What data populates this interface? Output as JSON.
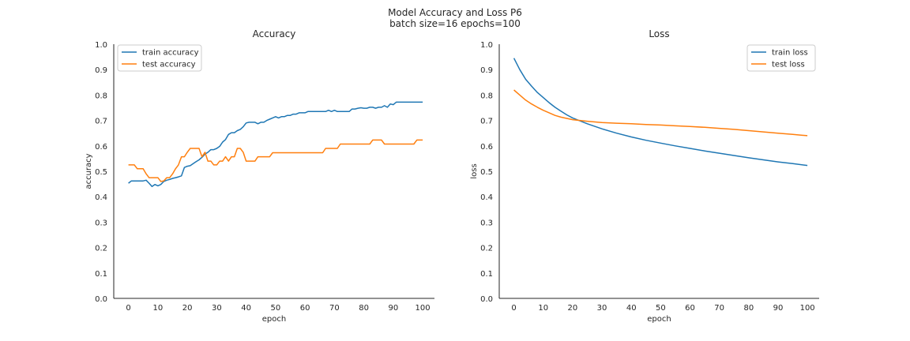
{
  "figure": {
    "title_line1": "Model Accuracy and Loss P6",
    "title_line2": "batch size=16 epochs=100"
  },
  "colors": {
    "series1": "#1f77b4",
    "series2": "#ff7f0e",
    "axis": "#262626"
  },
  "chart_data": [
    {
      "type": "line",
      "title": "Accuracy",
      "xlabel": "epoch",
      "ylabel": "accuracy",
      "xlim": [
        -5,
        104
      ],
      "ylim": [
        0,
        1
      ],
      "xticks": [
        0,
        10,
        20,
        30,
        40,
        50,
        60,
        70,
        80,
        90,
        100
      ],
      "yticks": [
        0.0,
        0.1,
        0.2,
        0.3,
        0.4,
        0.5,
        0.6,
        0.7,
        0.8,
        0.9,
        1.0
      ],
      "grid": false,
      "legend": "upper-left",
      "series": [
        {
          "name": "train accuracy",
          "color": "#1f77b4",
          "points": [
            [
              0,
              0.453
            ],
            [
              1,
              0.462
            ],
            [
              3,
              0.462
            ],
            [
              5,
              0.462
            ],
            [
              6,
              0.465
            ],
            [
              7,
              0.453
            ],
            [
              8,
              0.44
            ],
            [
              9,
              0.448
            ],
            [
              10,
              0.443
            ],
            [
              11,
              0.448
            ],
            [
              12,
              0.46
            ],
            [
              13,
              0.465
            ],
            [
              14,
              0.468
            ],
            [
              15,
              0.472
            ],
            [
              16,
              0.475
            ],
            [
              17,
              0.478
            ],
            [
              18,
              0.482
            ],
            [
              19,
              0.515
            ],
            [
              20,
              0.52
            ],
            [
              21,
              0.522
            ],
            [
              22,
              0.53
            ],
            [
              23,
              0.538
            ],
            [
              24,
              0.545
            ],
            [
              25,
              0.555
            ],
            [
              26,
              0.567
            ],
            [
              27,
              0.575
            ],
            [
              28,
              0.585
            ],
            [
              29,
              0.585
            ],
            [
              30,
              0.59
            ],
            [
              31,
              0.598
            ],
            [
              32,
              0.615
            ],
            [
              33,
              0.625
            ],
            [
              34,
              0.645
            ],
            [
              35,
              0.652
            ],
            [
              36,
              0.652
            ],
            [
              37,
              0.66
            ],
            [
              38,
              0.665
            ],
            [
              39,
              0.675
            ],
            [
              40,
              0.69
            ],
            [
              41,
              0.693
            ],
            [
              42,
              0.693
            ],
            [
              43,
              0.693
            ],
            [
              44,
              0.687
            ],
            [
              45,
              0.693
            ],
            [
              46,
              0.693
            ],
            [
              47,
              0.7
            ],
            [
              48,
              0.705
            ],
            [
              49,
              0.71
            ],
            [
              50,
              0.715
            ],
            [
              51,
              0.71
            ],
            [
              52,
              0.715
            ],
            [
              53,
              0.715
            ],
            [
              54,
              0.72
            ],
            [
              55,
              0.72
            ],
            [
              56,
              0.725
            ],
            [
              57,
              0.725
            ],
            [
              58,
              0.73
            ],
            [
              59,
              0.73
            ],
            [
              60,
              0.73
            ],
            [
              61,
              0.735
            ],
            [
              62,
              0.735
            ],
            [
              63,
              0.735
            ],
            [
              64,
              0.735
            ],
            [
              65,
              0.735
            ],
            [
              66,
              0.735
            ],
            [
              67,
              0.735
            ],
            [
              68,
              0.74
            ],
            [
              69,
              0.735
            ],
            [
              70,
              0.74
            ],
            [
              71,
              0.735
            ],
            [
              72,
              0.735
            ],
            [
              73,
              0.735
            ],
            [
              74,
              0.735
            ],
            [
              75,
              0.735
            ],
            [
              76,
              0.745
            ],
            [
              77,
              0.745
            ],
            [
              78,
              0.748
            ],
            [
              79,
              0.75
            ],
            [
              80,
              0.748
            ],
            [
              81,
              0.748
            ],
            [
              82,
              0.752
            ],
            [
              83,
              0.752
            ],
            [
              84,
              0.748
            ],
            [
              85,
              0.752
            ],
            [
              86,
              0.752
            ],
            [
              87,
              0.758
            ],
            [
              88,
              0.752
            ],
            [
              89,
              0.765
            ],
            [
              90,
              0.762
            ],
            [
              91,
              0.772
            ],
            [
              92,
              0.772
            ],
            [
              94,
              0.772
            ],
            [
              96,
              0.772
            ],
            [
              98,
              0.772
            ],
            [
              100,
              0.772
            ]
          ]
        },
        {
          "name": "test accuracy",
          "color": "#ff7f0e",
          "points": [
            [
              0,
              0.525
            ],
            [
              2,
              0.525
            ],
            [
              3,
              0.51
            ],
            [
              5,
              0.51
            ],
            [
              6,
              0.49
            ],
            [
              7,
              0.475
            ],
            [
              8,
              0.475
            ],
            [
              9,
              0.475
            ],
            [
              10,
              0.475
            ],
            [
              11,
              0.46
            ],
            [
              12,
              0.462
            ],
            [
              13,
              0.475
            ],
            [
              14,
              0.475
            ],
            [
              15,
              0.49
            ],
            [
              16,
              0.51
            ],
            [
              17,
              0.525
            ],
            [
              18,
              0.557
            ],
            [
              19,
              0.557
            ],
            [
              20,
              0.575
            ],
            [
              21,
              0.59
            ],
            [
              22,
              0.59
            ],
            [
              23,
              0.59
            ],
            [
              24,
              0.59
            ],
            [
              25,
              0.557
            ],
            [
              26,
              0.575
            ],
            [
              27,
              0.54
            ],
            [
              28,
              0.54
            ],
            [
              29,
              0.525
            ],
            [
              30,
              0.525
            ],
            [
              31,
              0.54
            ],
            [
              32,
              0.54
            ],
            [
              33,
              0.557
            ],
            [
              34,
              0.54
            ],
            [
              35,
              0.557
            ],
            [
              36,
              0.557
            ],
            [
              37,
              0.59
            ],
            [
              38,
              0.59
            ],
            [
              39,
              0.575
            ],
            [
              40,
              0.54
            ],
            [
              41,
              0.54
            ],
            [
              42,
              0.54
            ],
            [
              43,
              0.54
            ],
            [
              44,
              0.557
            ],
            [
              45,
              0.557
            ],
            [
              46,
              0.557
            ],
            [
              47,
              0.557
            ],
            [
              48,
              0.557
            ],
            [
              49,
              0.573
            ],
            [
              50,
              0.573
            ],
            [
              60,
              0.573
            ],
            [
              62,
              0.573
            ],
            [
              66,
              0.573
            ],
            [
              67,
              0.59
            ],
            [
              68,
              0.59
            ],
            [
              70,
              0.59
            ],
            [
              71,
              0.59
            ],
            [
              72,
              0.607
            ],
            [
              75,
              0.607
            ],
            [
              80,
              0.607
            ],
            [
              82,
              0.607
            ],
            [
              83,
              0.623
            ],
            [
              86,
              0.623
            ],
            [
              87,
              0.607
            ],
            [
              90,
              0.607
            ],
            [
              95,
              0.607
            ],
            [
              97,
              0.607
            ],
            [
              98,
              0.623
            ],
            [
              100,
              0.623
            ]
          ]
        }
      ]
    },
    {
      "type": "line",
      "title": "Loss",
      "xlabel": "epoch",
      "ylabel": "loss",
      "xlim": [
        -5,
        104
      ],
      "ylim": [
        0,
        1
      ],
      "xticks": [
        0,
        10,
        20,
        30,
        40,
        50,
        60,
        70,
        80,
        90,
        100
      ],
      "yticks": [
        0.0,
        0.1,
        0.2,
        0.3,
        0.4,
        0.5,
        0.6,
        0.7,
        0.8,
        0.9,
        1.0
      ],
      "grid": false,
      "legend": "upper-right",
      "series": [
        {
          "name": "train loss",
          "color": "#1f77b4",
          "points": [
            [
              0,
              0.945
            ],
            [
              2,
              0.9
            ],
            [
              4,
              0.862
            ],
            [
              6,
              0.835
            ],
            [
              8,
              0.81
            ],
            [
              10,
              0.79
            ],
            [
              12,
              0.77
            ],
            [
              14,
              0.752
            ],
            [
              16,
              0.737
            ],
            [
              18,
              0.722
            ],
            [
              20,
              0.71
            ],
            [
              25,
              0.687
            ],
            [
              30,
              0.667
            ],
            [
              35,
              0.65
            ],
            [
              40,
              0.635
            ],
            [
              45,
              0.622
            ],
            [
              50,
              0.611
            ],
            [
              55,
              0.6
            ],
            [
              60,
              0.59
            ],
            [
              65,
              0.58
            ],
            [
              70,
              0.571
            ],
            [
              75,
              0.562
            ],
            [
              80,
              0.553
            ],
            [
              85,
              0.545
            ],
            [
              90,
              0.537
            ],
            [
              95,
              0.53
            ],
            [
              100,
              0.523
            ]
          ]
        },
        {
          "name": "test loss",
          "color": "#ff7f0e",
          "points": [
            [
              0,
              0.82
            ],
            [
              2,
              0.8
            ],
            [
              4,
              0.78
            ],
            [
              6,
              0.765
            ],
            [
              8,
              0.752
            ],
            [
              10,
              0.74
            ],
            [
              12,
              0.73
            ],
            [
              14,
              0.72
            ],
            [
              16,
              0.713
            ],
            [
              18,
              0.708
            ],
            [
              20,
              0.703
            ],
            [
              25,
              0.697
            ],
            [
              30,
              0.692
            ],
            [
              35,
              0.689
            ],
            [
              40,
              0.687
            ],
            [
              45,
              0.684
            ],
            [
              50,
              0.682
            ],
            [
              55,
              0.679
            ],
            [
              60,
              0.676
            ],
            [
              65,
              0.673
            ],
            [
              70,
              0.669
            ],
            [
              75,
              0.665
            ],
            [
              80,
              0.66
            ],
            [
              85,
              0.655
            ],
            [
              90,
              0.65
            ],
            [
              95,
              0.645
            ],
            [
              100,
              0.64
            ]
          ]
        }
      ]
    }
  ]
}
